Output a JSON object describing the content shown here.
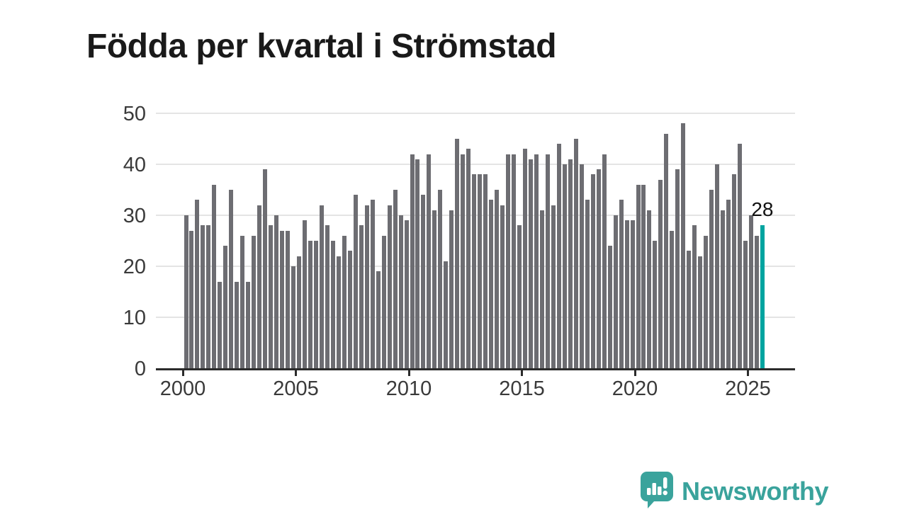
{
  "title": "Födda per kvartal i Strömstad",
  "chart_data": {
    "type": "bar",
    "title": "Födda per kvartal i Strömstad",
    "x_first_quarter": "2000Q1",
    "x_last_quarter": "2025Q3",
    "values": [
      30,
      27,
      33,
      28,
      28,
      36,
      17,
      24,
      35,
      17,
      26,
      17,
      26,
      32,
      39,
      28,
      30,
      27,
      27,
      20,
      22,
      29,
      25,
      25,
      32,
      28,
      25,
      22,
      26,
      23,
      34,
      28,
      32,
      33,
      19,
      26,
      32,
      35,
      30,
      29,
      42,
      41,
      34,
      42,
      31,
      35,
      21,
      31,
      45,
      42,
      43,
      38,
      38,
      38,
      33,
      35,
      32,
      42,
      42,
      28,
      43,
      41,
      42,
      31,
      42,
      32,
      44,
      40,
      41,
      45,
      40,
      33,
      38,
      39,
      42,
      24,
      30,
      33,
      29,
      29,
      36,
      36,
      31,
      25,
      37,
      46,
      27,
      39,
      48,
      23,
      28,
      22,
      26,
      35,
      40,
      31,
      33,
      38,
      44,
      25,
      30,
      26,
      28
    ],
    "highlight_last": true,
    "latest_value_label": "28",
    "ylim": [
      0,
      50
    ],
    "yticks": [
      0,
      10,
      20,
      30,
      40,
      50
    ],
    "xtick_labels": [
      "2000",
      "2005",
      "2010",
      "2015",
      "2020",
      "2025"
    ],
    "grid": "horizontal",
    "legend": "none",
    "colors": {
      "bar": "#6d6d72",
      "highlight": "#00a4a0",
      "gridline": "#e4e4e4",
      "axis": "#2b2b2b",
      "tick_text": "#3a3a3a",
      "title_text": "#1a1a1a"
    }
  },
  "logo": {
    "text": "Newsworthy",
    "color": "#3aa39c",
    "icon": "speech-bubble-bar-chart-icon"
  }
}
